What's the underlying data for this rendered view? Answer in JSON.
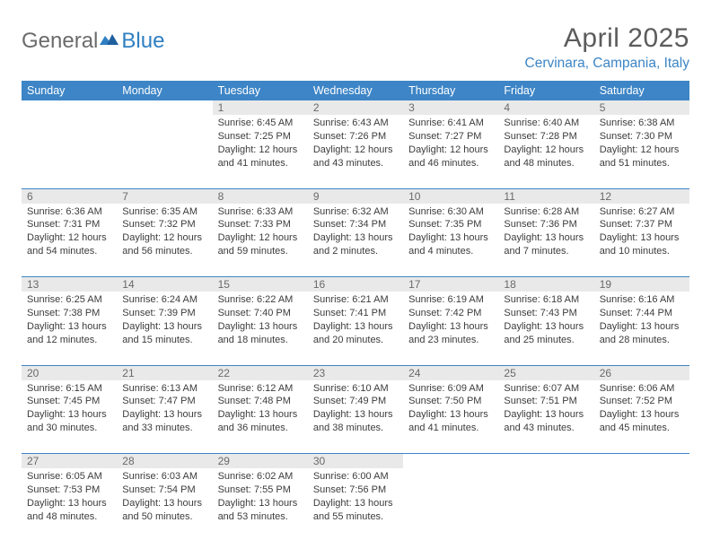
{
  "logo": {
    "text1": "General",
    "text2": "Blue"
  },
  "title": "April 2025",
  "location": "Cervinara, Campania, Italy",
  "colors": {
    "header_bg": "#3d85c6",
    "daynum_bg": "#e9e9e9",
    "text": "#3c3c3c",
    "rule": "#3d85c6"
  },
  "dayNames": [
    "Sunday",
    "Monday",
    "Tuesday",
    "Wednesday",
    "Thursday",
    "Friday",
    "Saturday"
  ],
  "weeks": [
    [
      null,
      null,
      {
        "n": "1",
        "sr": "Sunrise: 6:45 AM",
        "ss": "Sunset: 7:25 PM",
        "d1": "Daylight: 12 hours",
        "d2": "and 41 minutes."
      },
      {
        "n": "2",
        "sr": "Sunrise: 6:43 AM",
        "ss": "Sunset: 7:26 PM",
        "d1": "Daylight: 12 hours",
        "d2": "and 43 minutes."
      },
      {
        "n": "3",
        "sr": "Sunrise: 6:41 AM",
        "ss": "Sunset: 7:27 PM",
        "d1": "Daylight: 12 hours",
        "d2": "and 46 minutes."
      },
      {
        "n": "4",
        "sr": "Sunrise: 6:40 AM",
        "ss": "Sunset: 7:28 PM",
        "d1": "Daylight: 12 hours",
        "d2": "and 48 minutes."
      },
      {
        "n": "5",
        "sr": "Sunrise: 6:38 AM",
        "ss": "Sunset: 7:30 PM",
        "d1": "Daylight: 12 hours",
        "d2": "and 51 minutes."
      }
    ],
    [
      {
        "n": "6",
        "sr": "Sunrise: 6:36 AM",
        "ss": "Sunset: 7:31 PM",
        "d1": "Daylight: 12 hours",
        "d2": "and 54 minutes."
      },
      {
        "n": "7",
        "sr": "Sunrise: 6:35 AM",
        "ss": "Sunset: 7:32 PM",
        "d1": "Daylight: 12 hours",
        "d2": "and 56 minutes."
      },
      {
        "n": "8",
        "sr": "Sunrise: 6:33 AM",
        "ss": "Sunset: 7:33 PM",
        "d1": "Daylight: 12 hours",
        "d2": "and 59 minutes."
      },
      {
        "n": "9",
        "sr": "Sunrise: 6:32 AM",
        "ss": "Sunset: 7:34 PM",
        "d1": "Daylight: 13 hours",
        "d2": "and 2 minutes."
      },
      {
        "n": "10",
        "sr": "Sunrise: 6:30 AM",
        "ss": "Sunset: 7:35 PM",
        "d1": "Daylight: 13 hours",
        "d2": "and 4 minutes."
      },
      {
        "n": "11",
        "sr": "Sunrise: 6:28 AM",
        "ss": "Sunset: 7:36 PM",
        "d1": "Daylight: 13 hours",
        "d2": "and 7 minutes."
      },
      {
        "n": "12",
        "sr": "Sunrise: 6:27 AM",
        "ss": "Sunset: 7:37 PM",
        "d1": "Daylight: 13 hours",
        "d2": "and 10 minutes."
      }
    ],
    [
      {
        "n": "13",
        "sr": "Sunrise: 6:25 AM",
        "ss": "Sunset: 7:38 PM",
        "d1": "Daylight: 13 hours",
        "d2": "and 12 minutes."
      },
      {
        "n": "14",
        "sr": "Sunrise: 6:24 AM",
        "ss": "Sunset: 7:39 PM",
        "d1": "Daylight: 13 hours",
        "d2": "and 15 minutes."
      },
      {
        "n": "15",
        "sr": "Sunrise: 6:22 AM",
        "ss": "Sunset: 7:40 PM",
        "d1": "Daylight: 13 hours",
        "d2": "and 18 minutes."
      },
      {
        "n": "16",
        "sr": "Sunrise: 6:21 AM",
        "ss": "Sunset: 7:41 PM",
        "d1": "Daylight: 13 hours",
        "d2": "and 20 minutes."
      },
      {
        "n": "17",
        "sr": "Sunrise: 6:19 AM",
        "ss": "Sunset: 7:42 PM",
        "d1": "Daylight: 13 hours",
        "d2": "and 23 minutes."
      },
      {
        "n": "18",
        "sr": "Sunrise: 6:18 AM",
        "ss": "Sunset: 7:43 PM",
        "d1": "Daylight: 13 hours",
        "d2": "and 25 minutes."
      },
      {
        "n": "19",
        "sr": "Sunrise: 6:16 AM",
        "ss": "Sunset: 7:44 PM",
        "d1": "Daylight: 13 hours",
        "d2": "and 28 minutes."
      }
    ],
    [
      {
        "n": "20",
        "sr": "Sunrise: 6:15 AM",
        "ss": "Sunset: 7:45 PM",
        "d1": "Daylight: 13 hours",
        "d2": "and 30 minutes."
      },
      {
        "n": "21",
        "sr": "Sunrise: 6:13 AM",
        "ss": "Sunset: 7:47 PM",
        "d1": "Daylight: 13 hours",
        "d2": "and 33 minutes."
      },
      {
        "n": "22",
        "sr": "Sunrise: 6:12 AM",
        "ss": "Sunset: 7:48 PM",
        "d1": "Daylight: 13 hours",
        "d2": "and 36 minutes."
      },
      {
        "n": "23",
        "sr": "Sunrise: 6:10 AM",
        "ss": "Sunset: 7:49 PM",
        "d1": "Daylight: 13 hours",
        "d2": "and 38 minutes."
      },
      {
        "n": "24",
        "sr": "Sunrise: 6:09 AM",
        "ss": "Sunset: 7:50 PM",
        "d1": "Daylight: 13 hours",
        "d2": "and 41 minutes."
      },
      {
        "n": "25",
        "sr": "Sunrise: 6:07 AM",
        "ss": "Sunset: 7:51 PM",
        "d1": "Daylight: 13 hours",
        "d2": "and 43 minutes."
      },
      {
        "n": "26",
        "sr": "Sunrise: 6:06 AM",
        "ss": "Sunset: 7:52 PM",
        "d1": "Daylight: 13 hours",
        "d2": "and 45 minutes."
      }
    ],
    [
      {
        "n": "27",
        "sr": "Sunrise: 6:05 AM",
        "ss": "Sunset: 7:53 PM",
        "d1": "Daylight: 13 hours",
        "d2": "and 48 minutes."
      },
      {
        "n": "28",
        "sr": "Sunrise: 6:03 AM",
        "ss": "Sunset: 7:54 PM",
        "d1": "Daylight: 13 hours",
        "d2": "and 50 minutes."
      },
      {
        "n": "29",
        "sr": "Sunrise: 6:02 AM",
        "ss": "Sunset: 7:55 PM",
        "d1": "Daylight: 13 hours",
        "d2": "and 53 minutes."
      },
      {
        "n": "30",
        "sr": "Sunrise: 6:00 AM",
        "ss": "Sunset: 7:56 PM",
        "d1": "Daylight: 13 hours",
        "d2": "and 55 minutes."
      },
      null,
      null,
      null
    ]
  ]
}
